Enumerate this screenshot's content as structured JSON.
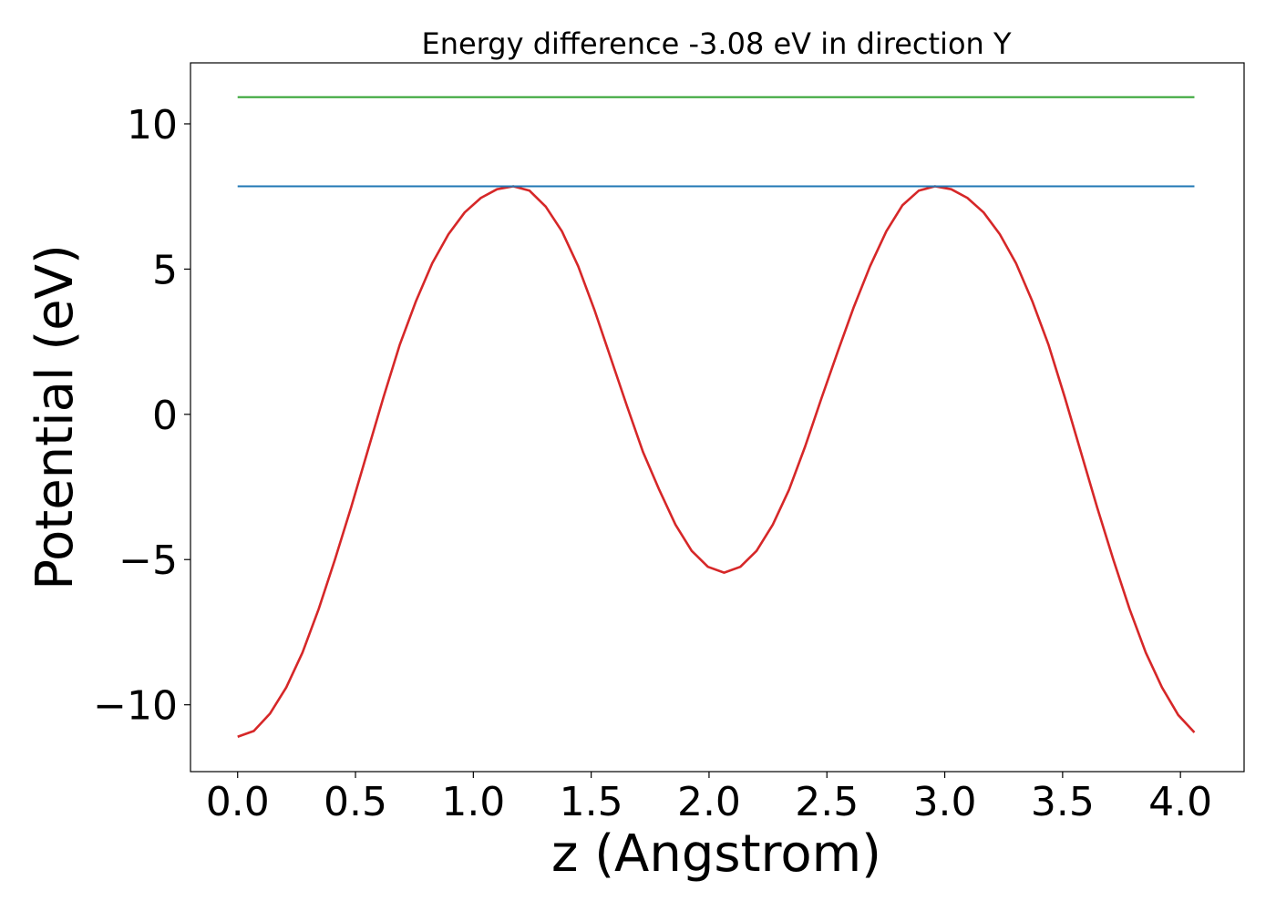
{
  "chart_data": {
    "type": "line",
    "title": "Energy difference -3.08 eV in direction Y",
    "xlabel": "z (Angstrom)",
    "ylabel": "Potential (eV)",
    "xlim": [
      -0.2,
      4.27
    ],
    "ylim": [
      -12.3,
      12.1
    ],
    "x_ticks": [
      0.0,
      0.5,
      1.0,
      1.5,
      2.0,
      2.5,
      3.0,
      3.5,
      4.0
    ],
    "x_tick_labels": [
      "0.0",
      "0.5",
      "1.0",
      "1.5",
      "2.0",
      "2.5",
      "3.0",
      "3.5",
      "4.0"
    ],
    "y_ticks": [
      -10,
      -5,
      0,
      5,
      10
    ],
    "y_tick_labels": [
      "−10",
      "−5",
      "0",
      "5",
      "10"
    ],
    "grid": false,
    "series": [
      {
        "color": "#d62728",
        "x": [
          0.0,
          0.0688,
          0.1376,
          0.2064,
          0.2752,
          0.344,
          0.4128,
          0.4816,
          0.5504,
          0.6192,
          0.688,
          0.7568,
          0.8256,
          0.8944,
          0.9632,
          1.032,
          1.1008,
          1.1696,
          1.2384,
          1.3072,
          1.376,
          1.4448,
          1.5136,
          1.5824,
          1.6512,
          1.72,
          1.7888,
          1.8576,
          1.9264,
          1.9952,
          2.064,
          2.1328,
          2.2016,
          2.2704,
          2.3392,
          2.408,
          2.4768,
          2.5456,
          2.6144,
          2.6832,
          2.752,
          2.8208,
          2.8896,
          2.9584,
          3.0272,
          3.096,
          3.1648,
          3.2336,
          3.3024,
          3.3712,
          3.44,
          3.5088,
          3.5776,
          3.6464,
          3.7152,
          3.784,
          3.8528,
          3.9216,
          3.9904,
          4.0592
        ],
        "y": [
          -11.1,
          -10.9,
          -10.3,
          -9.4,
          -8.2,
          -6.7,
          -5.0,
          -3.2,
          -1.3,
          0.6,
          2.4,
          3.9,
          5.2,
          6.2,
          6.95,
          7.45,
          7.75,
          7.85,
          7.7,
          7.15,
          6.3,
          5.1,
          3.6,
          1.95,
          0.3,
          -1.3,
          -2.6,
          -3.8,
          -4.7,
          -5.25,
          -5.45,
          -5.25,
          -4.7,
          -3.8,
          -2.6,
          -1.1,
          0.55,
          2.15,
          3.7,
          5.1,
          6.3,
          7.2,
          7.7,
          7.85,
          7.75,
          7.45,
          6.95,
          6.2,
          5.2,
          3.9,
          2.4,
          0.6,
          -1.3,
          -3.2,
          -5.0,
          -6.7,
          -8.2,
          -9.4,
          -10.35,
          -10.95
        ]
      },
      {
        "color": "#1f77b4",
        "x": [
          0.0,
          4.0592
        ],
        "y": [
          7.85,
          7.85
        ]
      },
      {
        "color": "#2ca02c",
        "x": [
          0.0,
          4.0592
        ],
        "y": [
          10.92,
          10.92
        ]
      }
    ]
  }
}
